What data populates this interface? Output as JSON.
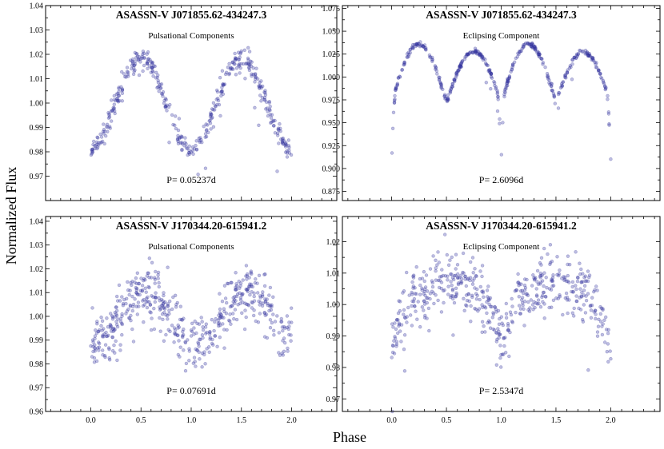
{
  "figure": {
    "xlabel": "Phase",
    "ylabel": "Normalized Flux"
  },
  "chart_data": [
    {
      "type": "scatter",
      "title": "ASASSN-V J071855.62-434247.3",
      "subtitle": "Pulsational Components",
      "period_label": "P= 0.05237d",
      "xlim": [
        -0.45,
        2.45
      ],
      "ylim": [
        0.96,
        1.04
      ],
      "xticks": [
        0.0,
        0.5,
        1.0,
        1.5,
        2.0
      ],
      "xticklabels": [
        "0.0",
        "0.5",
        "1.0",
        "1.5",
        "2.0"
      ],
      "yticks": [
        0.97,
        0.98,
        0.99,
        1.0,
        1.01,
        1.02,
        1.03,
        1.04
      ],
      "yticklabels": [
        "0.97",
        "0.98",
        "0.99",
        "1.00",
        "1.01",
        "1.02",
        "1.03",
        "1.04"
      ],
      "show_xticklabels": false,
      "model": "pulsation",
      "mean": 1.0,
      "amplitude": 0.0185,
      "peak_phase": 0.5,
      "scatter": 0.0022,
      "n_points": 420
    },
    {
      "type": "scatter",
      "title": "ASASSN-V J071855.62-434247.3",
      "subtitle": "Eclipsing Component",
      "period_label": "P= 2.6096d",
      "xlim": [
        -0.45,
        2.45
      ],
      "ylim": [
        0.865,
        1.078
      ],
      "xticks": [
        0.0,
        0.5,
        1.0,
        1.5,
        2.0
      ],
      "xticklabels": [
        "0.0",
        "0.5",
        "1.0",
        "1.5",
        "2.0"
      ],
      "yticks": [
        0.875,
        0.9,
        0.925,
        0.95,
        0.975,
        1.0,
        1.025,
        1.05,
        1.075
      ],
      "yticklabels": [
        "0.875",
        "0.900",
        "0.925",
        "0.950",
        "0.975",
        "1.000",
        "1.025",
        "1.050",
        "1.075"
      ],
      "show_xticklabels": false,
      "model": "eclipse",
      "base": 0.972,
      "max": 1.032,
      "min_secondary": 0.978,
      "min_primary": 0.909,
      "scatter": 0.0015,
      "n_points": 420
    },
    {
      "type": "scatter",
      "title": "ASASSN-V J170344.20-615941.2",
      "subtitle": "Pulsational Components",
      "period_label": "P= 0.07691d",
      "xlim": [
        -0.45,
        2.45
      ],
      "ylim": [
        0.96,
        1.042
      ],
      "xticks": [
        0.0,
        0.5,
        1.0,
        1.5,
        2.0
      ],
      "xticklabels": [
        "0.0",
        "0.5",
        "1.0",
        "1.5",
        "2.0"
      ],
      "yticks": [
        0.96,
        0.97,
        0.98,
        0.99,
        1.0,
        1.01,
        1.02,
        1.03,
        1.04
      ],
      "yticklabels": [
        "0.96",
        "0.97",
        "0.98",
        "0.99",
        "1.00",
        "1.01",
        "1.02",
        "1.03",
        "1.04"
      ],
      "show_xticklabels": true,
      "model": "pulsation",
      "mean": 1.0,
      "amplitude": 0.011,
      "peak_phase": 0.55,
      "scatter": 0.0055,
      "n_points": 520
    },
    {
      "type": "scatter",
      "title": "ASASSN-V J170344.20-615941.2",
      "subtitle": "Eclipsing Component",
      "period_label": "P= 2.5347d",
      "xlim": [
        -0.45,
        2.45
      ],
      "ylim": [
        0.966,
        1.028
      ],
      "xticks": [
        0.0,
        0.5,
        1.0,
        1.5,
        2.0
      ],
      "xticklabels": [
        "0.0",
        "0.5",
        "1.0",
        "1.5",
        "2.0"
      ],
      "yticks": [
        0.97,
        0.98,
        0.99,
        1.0,
        1.01,
        1.02
      ],
      "yticklabels": [
        "0.97",
        "0.98",
        "0.99",
        "1.00",
        "1.01",
        "1.02"
      ],
      "show_xticklabels": true,
      "model": "eclipse2",
      "base": 0.986,
      "max": 1.006,
      "min_primary": 0.984,
      "scatter": 0.0045,
      "n_points": 520
    }
  ]
}
